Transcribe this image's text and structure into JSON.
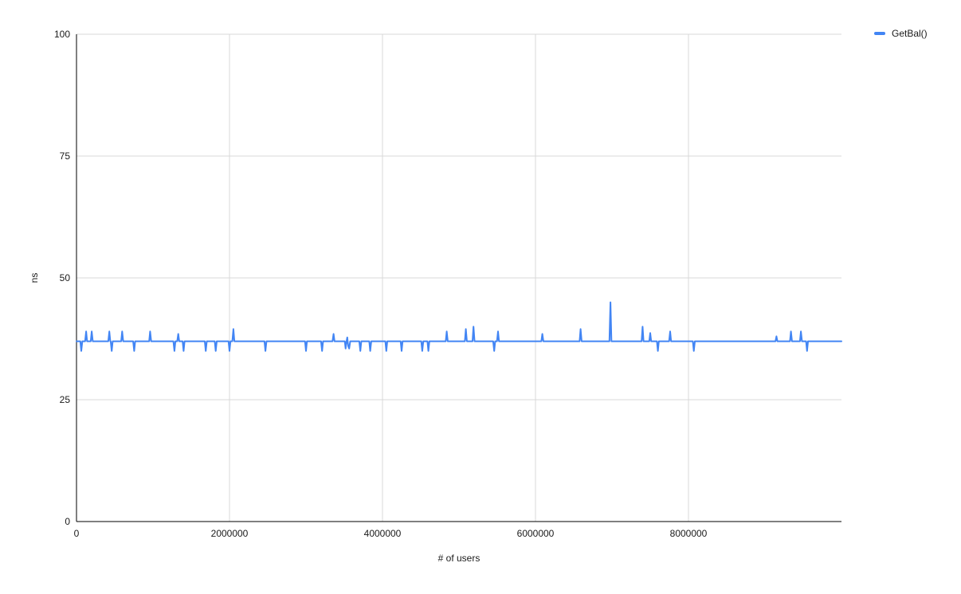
{
  "chart_data": {
    "type": "line",
    "title": "",
    "xlabel": "# of users",
    "ylabel": "ns",
    "xlim": [
      0,
      10000000
    ],
    "ylim": [
      0,
      100
    ],
    "x_ticks": [
      0,
      2000000,
      4000000,
      6000000,
      8000000
    ],
    "y_ticks": [
      0,
      25,
      50,
      75,
      100
    ],
    "grid": true,
    "legend_position": "top-right",
    "series": [
      {
        "name": "GetBal()",
        "color": "#4285f4",
        "baseline_ns": 37,
        "points": [
          [
            0,
            37
          ],
          [
            50000,
            37
          ],
          [
            63000,
            35
          ],
          [
            76000,
            37
          ],
          [
            113000,
            37
          ],
          [
            126000,
            39
          ],
          [
            139000,
            37
          ],
          [
            186000,
            37
          ],
          [
            199000,
            39
          ],
          [
            212000,
            37
          ],
          [
            416000,
            37
          ],
          [
            429000,
            39
          ],
          [
            442000,
            37
          ],
          [
            447000,
            37
          ],
          [
            460000,
            35
          ],
          [
            473000,
            37
          ],
          [
            584000,
            37
          ],
          [
            597000,
            39
          ],
          [
            610000,
            37
          ],
          [
            741000,
            37
          ],
          [
            754000,
            35
          ],
          [
            767000,
            37
          ],
          [
            950000,
            37
          ],
          [
            963000,
            39
          ],
          [
            976000,
            37
          ],
          [
            1267000,
            37
          ],
          [
            1280000,
            35
          ],
          [
            1293000,
            37
          ],
          [
            1317000,
            37
          ],
          [
            1330000,
            38.5
          ],
          [
            1343000,
            37
          ],
          [
            1387000,
            37
          ],
          [
            1400000,
            35
          ],
          [
            1413000,
            37
          ],
          [
            1677000,
            37
          ],
          [
            1690000,
            35
          ],
          [
            1703000,
            37
          ],
          [
            1807000,
            37
          ],
          [
            1820000,
            35
          ],
          [
            1833000,
            37
          ],
          [
            1987000,
            37
          ],
          [
            2000000,
            35
          ],
          [
            2013000,
            37
          ],
          [
            2038000,
            37
          ],
          [
            2051000,
            39.5
          ],
          [
            2064000,
            37
          ],
          [
            2457000,
            37
          ],
          [
            2470000,
            35
          ],
          [
            2483000,
            37
          ],
          [
            2987000,
            37
          ],
          [
            3000000,
            35
          ],
          [
            3013000,
            37
          ],
          [
            3197000,
            37
          ],
          [
            3210000,
            35
          ],
          [
            3223000,
            37
          ],
          [
            3347000,
            37
          ],
          [
            3360000,
            38.5
          ],
          [
            3373000,
            37
          ],
          [
            3507000,
            37
          ],
          [
            3518000,
            35.5
          ],
          [
            3530000,
            37
          ],
          [
            3540000,
            37.8
          ],
          [
            3552000,
            36
          ],
          [
            3565000,
            35.5
          ],
          [
            3578000,
            37
          ],
          [
            3697000,
            37
          ],
          [
            3710000,
            35
          ],
          [
            3723000,
            37
          ],
          [
            3827000,
            37
          ],
          [
            3840000,
            35
          ],
          [
            3853000,
            37
          ],
          [
            4037000,
            37
          ],
          [
            4050000,
            35
          ],
          [
            4063000,
            37
          ],
          [
            4237000,
            37
          ],
          [
            4250000,
            35
          ],
          [
            4263000,
            37
          ],
          [
            4507000,
            37
          ],
          [
            4520000,
            35
          ],
          [
            4533000,
            37
          ],
          [
            4587000,
            37
          ],
          [
            4600000,
            35
          ],
          [
            4613000,
            37
          ],
          [
            4827000,
            37
          ],
          [
            4840000,
            39
          ],
          [
            4853000,
            37
          ],
          [
            5077000,
            37
          ],
          [
            5090000,
            39.5
          ],
          [
            5103000,
            37
          ],
          [
            5177000,
            37
          ],
          [
            5190000,
            40
          ],
          [
            5203000,
            37
          ],
          [
            5447000,
            37
          ],
          [
            5460000,
            35
          ],
          [
            5473000,
            37
          ],
          [
            5497000,
            37
          ],
          [
            5510000,
            39
          ],
          [
            5523000,
            37
          ],
          [
            6077000,
            37
          ],
          [
            6090000,
            38.5
          ],
          [
            6103000,
            37
          ],
          [
            6577000,
            37
          ],
          [
            6590000,
            39.5
          ],
          [
            6603000,
            37
          ],
          [
            6967000,
            37
          ],
          [
            6980000,
            45
          ],
          [
            6993000,
            37
          ],
          [
            7387000,
            37
          ],
          [
            7400000,
            40
          ],
          [
            7413000,
            37
          ],
          [
            7487000,
            37
          ],
          [
            7500000,
            38.7
          ],
          [
            7513000,
            37
          ],
          [
            7587000,
            37
          ],
          [
            7600000,
            35
          ],
          [
            7613000,
            37
          ],
          [
            7747000,
            37
          ],
          [
            7760000,
            39
          ],
          [
            7773000,
            37
          ],
          [
            8057000,
            37
          ],
          [
            8070000,
            35
          ],
          [
            8083000,
            37
          ],
          [
            9137000,
            37
          ],
          [
            9150000,
            38
          ],
          [
            9163000,
            37
          ],
          [
            9327000,
            37
          ],
          [
            9340000,
            39
          ],
          [
            9353000,
            37
          ],
          [
            9457000,
            37
          ],
          [
            9470000,
            39
          ],
          [
            9483000,
            37
          ],
          [
            9537000,
            37
          ],
          [
            9550000,
            35
          ],
          [
            9563000,
            37
          ],
          [
            10000000,
            37
          ]
        ]
      }
    ]
  },
  "colors": {
    "background": "#ffffff",
    "gridline": "#d9d9d9",
    "axis": "#000000",
    "tick_text": "#1a1a1a",
    "series_blue": "#4285f4"
  }
}
